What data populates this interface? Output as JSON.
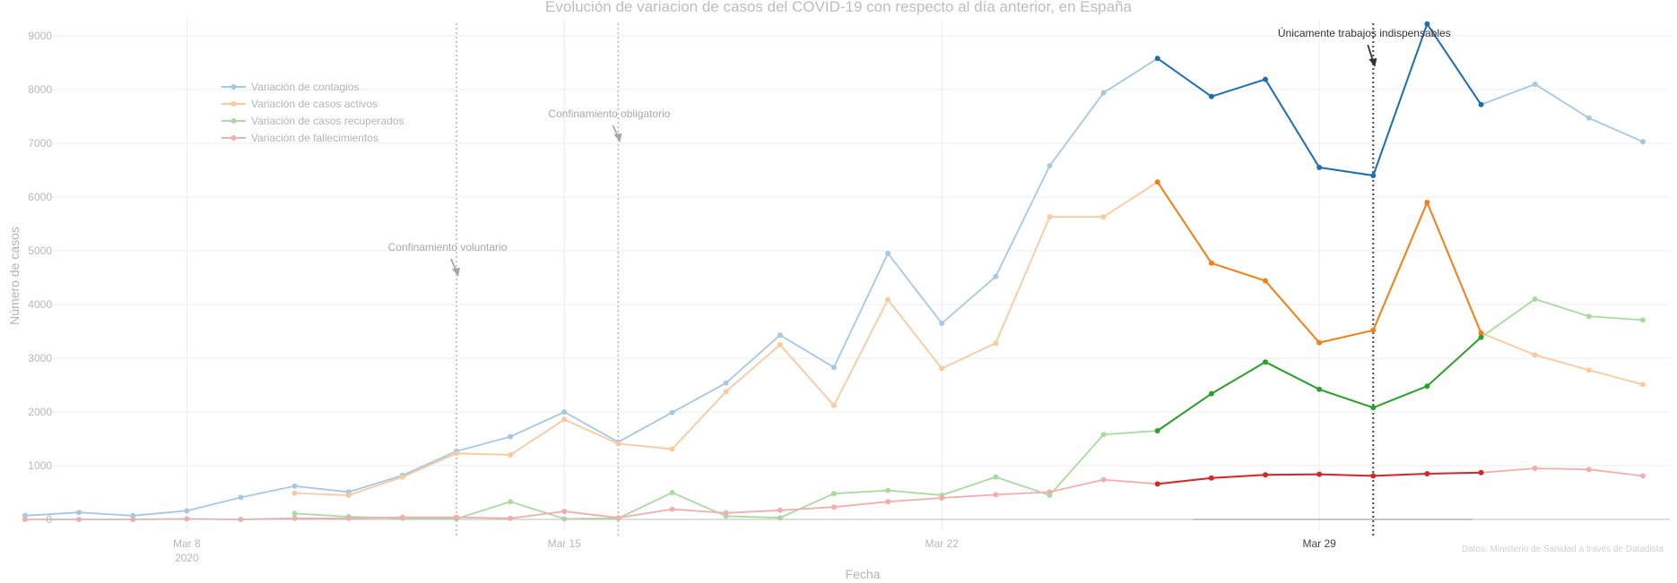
{
  "chart_data": {
    "type": "line",
    "title": "Evolución de variacion de casos del COVID-19 con respecto al día anterior, en España",
    "xlabel": "Fecha",
    "ylabel": "Número de casos",
    "source": "Datos: Ministerio de Sanidad a través de Datadista",
    "x_start_date": "2020-03-05",
    "xlim": [
      "2020-03-05",
      "2020-04-03"
    ],
    "ylim": [
      -200,
      9300
    ],
    "y_ticks": [
      0,
      1000,
      2000,
      3000,
      4000,
      5000,
      6000,
      7000,
      8000,
      9000
    ],
    "x_ticks": [
      {
        "date": "2020-03-08",
        "label": "Mar 8",
        "sublabel": "2020"
      },
      {
        "date": "2020-03-15",
        "label": "Mar 15",
        "sublabel": ""
      },
      {
        "date": "2020-03-22",
        "label": "Mar 22",
        "sublabel": ""
      },
      {
        "date": "2020-03-29",
        "label": "Mar 29",
        "sublabel": ""
      }
    ],
    "grid": true,
    "legend_position": "top-left",
    "highlight": {
      "from": "2020-03-26",
      "to": "2020-04-01"
    },
    "series": [
      {
        "name": "Variación de contagios",
        "color_light": "#a6c8e2",
        "color": "#1f6fb0",
        "points": [
          [
            "2020-03-05",
            70
          ],
          [
            "2020-03-06",
            130
          ],
          [
            "2020-03-07",
            70
          ],
          [
            "2020-03-08",
            160
          ],
          [
            "2020-03-09",
            410
          ],
          [
            "2020-03-10",
            620
          ],
          [
            "2020-03-11",
            510
          ],
          [
            "2020-03-12",
            820
          ],
          [
            "2020-03-13",
            1270
          ],
          [
            "2020-03-14",
            1540
          ],
          [
            "2020-03-15",
            2000
          ],
          [
            "2020-03-16",
            1440
          ],
          [
            "2020-03-17",
            1990
          ],
          [
            "2020-03-18",
            2540
          ],
          [
            "2020-03-19",
            3430
          ],
          [
            "2020-03-20",
            2830
          ],
          [
            "2020-03-21",
            4950
          ],
          [
            "2020-03-22",
            3650
          ],
          [
            "2020-03-23",
            4520
          ],
          [
            "2020-03-24",
            6580
          ],
          [
            "2020-03-25",
            7940
          ],
          [
            "2020-03-26",
            8580
          ],
          [
            "2020-03-27",
            7870
          ],
          [
            "2020-03-28",
            8190
          ],
          [
            "2020-03-29",
            6550
          ],
          [
            "2020-03-30",
            6400
          ],
          [
            "2020-03-31",
            9220
          ],
          [
            "2020-04-01",
            7720
          ],
          [
            "2020-04-02",
            8100
          ],
          [
            "2020-04-03",
            7470
          ],
          [
            "2020-04-04",
            7030
          ]
        ]
      },
      {
        "name": "Variación de casos activos",
        "color_light": "#fcc89d",
        "color": "#f57f17",
        "points": [
          [
            "2020-03-10",
            490
          ],
          [
            "2020-03-11",
            450
          ],
          [
            "2020-03-12",
            790
          ],
          [
            "2020-03-13",
            1230
          ],
          [
            "2020-03-14",
            1200
          ],
          [
            "2020-03-15",
            1860
          ],
          [
            "2020-03-16",
            1410
          ],
          [
            "2020-03-17",
            1310
          ],
          [
            "2020-03-18",
            2380
          ],
          [
            "2020-03-19",
            3250
          ],
          [
            "2020-03-20",
            2120
          ],
          [
            "2020-03-21",
            4090
          ],
          [
            "2020-03-22",
            2810
          ],
          [
            "2020-03-23",
            3280
          ],
          [
            "2020-03-24",
            5630
          ],
          [
            "2020-03-25",
            5630
          ],
          [
            "2020-03-26",
            6280
          ],
          [
            "2020-03-27",
            4770
          ],
          [
            "2020-03-28",
            4440
          ],
          [
            "2020-03-29",
            3290
          ],
          [
            "2020-03-30",
            3520
          ],
          [
            "2020-03-31",
            5900
          ],
          [
            "2020-04-01",
            3470
          ],
          [
            "2020-04-02",
            3060
          ],
          [
            "2020-04-03",
            2780
          ],
          [
            "2020-04-04",
            2510
          ]
        ]
      },
      {
        "name": "Variación de casos recuperados",
        "color_light": "#a9dba0",
        "color": "#2ca02c",
        "points": [
          [
            "2020-03-10",
            110
          ],
          [
            "2020-03-11",
            50
          ],
          [
            "2020-03-12",
            20
          ],
          [
            "2020-03-13",
            10
          ],
          [
            "2020-03-14",
            330
          ],
          [
            "2020-03-15",
            10
          ],
          [
            "2020-03-16",
            20
          ],
          [
            "2020-03-17",
            500
          ],
          [
            "2020-03-18",
            60
          ],
          [
            "2020-03-19",
            30
          ],
          [
            "2020-03-20",
            480
          ],
          [
            "2020-03-21",
            540
          ],
          [
            "2020-03-22",
            450
          ],
          [
            "2020-03-23",
            790
          ],
          [
            "2020-03-24",
            450
          ],
          [
            "2020-03-25",
            1580
          ],
          [
            "2020-03-26",
            1650
          ],
          [
            "2020-03-27",
            2340
          ],
          [
            "2020-03-28",
            2930
          ],
          [
            "2020-03-29",
            2420
          ],
          [
            "2020-03-30",
            2080
          ],
          [
            "2020-03-31",
            2480
          ],
          [
            "2020-04-01",
            3390
          ],
          [
            "2020-04-02",
            4100
          ],
          [
            "2020-04-03",
            3780
          ],
          [
            "2020-04-04",
            3710
          ]
        ]
      },
      {
        "name": "Variación de fallecimientos",
        "color_light": "#f2aeae",
        "color": "#d62728",
        "points": [
          [
            "2020-03-05",
            0
          ],
          [
            "2020-03-06",
            0
          ],
          [
            "2020-03-07",
            0
          ],
          [
            "2020-03-08",
            10
          ],
          [
            "2020-03-09",
            0
          ],
          [
            "2020-03-10",
            20
          ],
          [
            "2020-03-11",
            20
          ],
          [
            "2020-03-12",
            40
          ],
          [
            "2020-03-13",
            40
          ],
          [
            "2020-03-14",
            20
          ],
          [
            "2020-03-15",
            150
          ],
          [
            "2020-03-16",
            30
          ],
          [
            "2020-03-17",
            190
          ],
          [
            "2020-03-18",
            120
          ],
          [
            "2020-03-19",
            170
          ],
          [
            "2020-03-20",
            230
          ],
          [
            "2020-03-21",
            330
          ],
          [
            "2020-03-22",
            400
          ],
          [
            "2020-03-23",
            460
          ],
          [
            "2020-03-24",
            510
          ],
          [
            "2020-03-25",
            740
          ],
          [
            "2020-03-26",
            660
          ],
          [
            "2020-03-27",
            770
          ],
          [
            "2020-03-28",
            830
          ],
          [
            "2020-03-29",
            840
          ],
          [
            "2020-03-30",
            810
          ],
          [
            "2020-03-31",
            850
          ],
          [
            "2020-04-01",
            870
          ],
          [
            "2020-04-02",
            950
          ],
          [
            "2020-04-03",
            930
          ],
          [
            "2020-04-04",
            810
          ]
        ]
      }
    ],
    "annotations": [
      {
        "label": "Confinamiento voluntario",
        "date": "2020-03-13",
        "text_y": 5000,
        "arrow_y": 4500,
        "emphasis": false
      },
      {
        "label": "Confinamiento obligatorio",
        "date": "2020-03-16",
        "text_y": 7480,
        "arrow_y": 7000,
        "emphasis": false
      },
      {
        "label": "Únicamente trabajos indispensables",
        "date": "2020-03-30",
        "text_y": 8980,
        "arrow_y": 8400,
        "emphasis": true
      }
    ]
  }
}
